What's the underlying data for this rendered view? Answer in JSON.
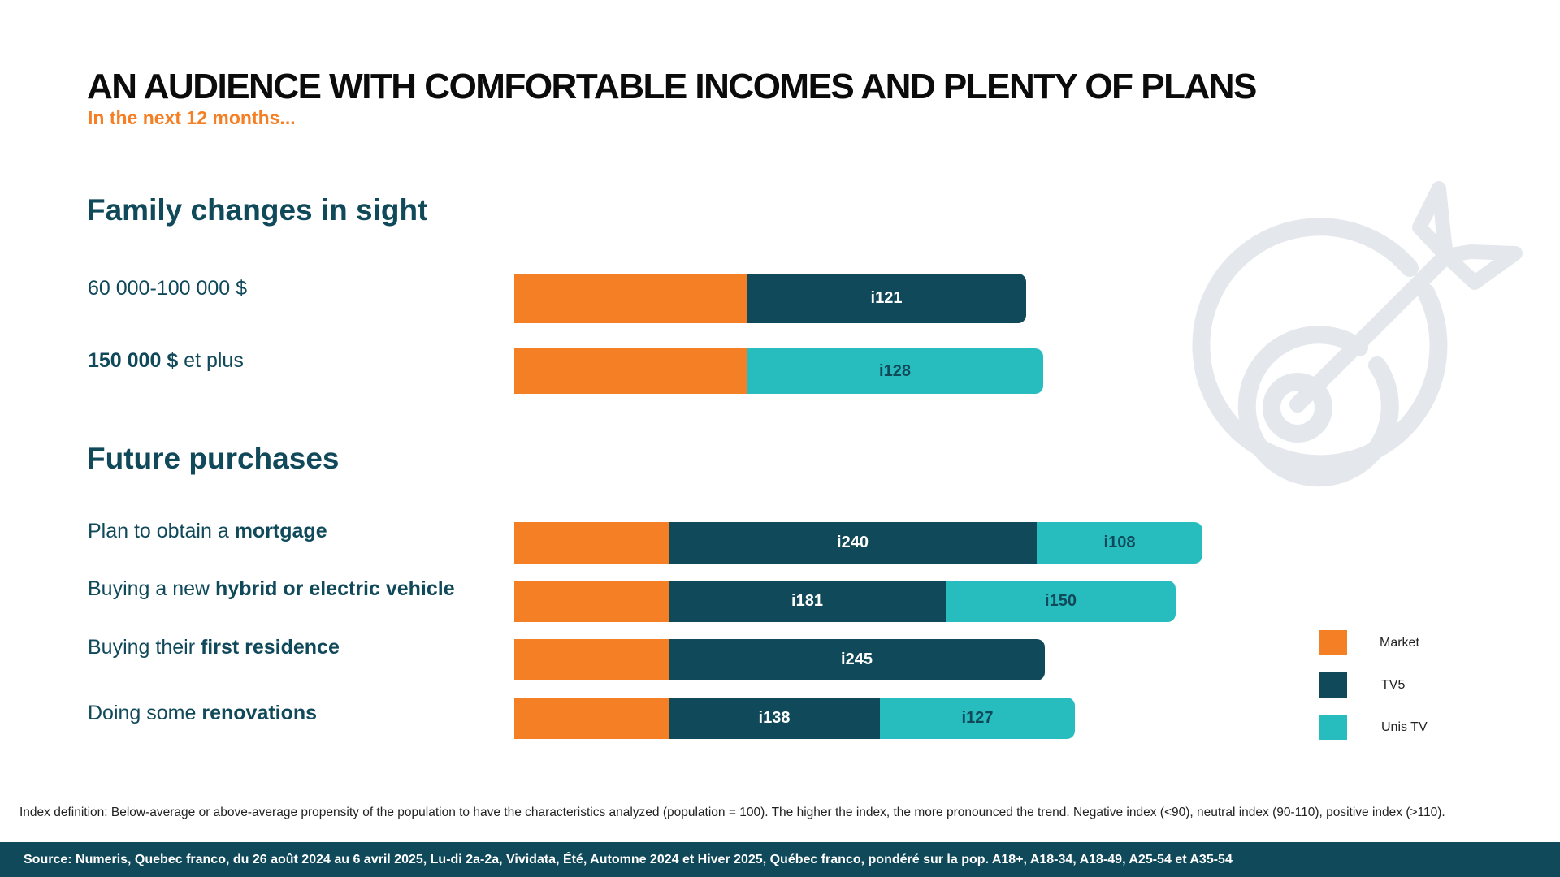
{
  "header": {
    "title": "AN AUDIENCE WITH COMFORTABLE INCOMES AND PLENTY OF PLANS",
    "subtitle": "In the next 12 months..."
  },
  "sections": {
    "family_title": "Family changes in sight",
    "purchases_title": "Future purchases"
  },
  "rows": {
    "income_60_100": {
      "label": "60 000-100 000 $"
    },
    "income_150": {
      "label_bold": "150 000 $",
      "label_rest": " et plus"
    },
    "mortgage": {
      "label_pre": "Plan to obtain a ",
      "label_bold": "mortgage"
    },
    "vehicle": {
      "label_pre": "Buying a new ",
      "label_bold": "hybrid or electric vehicle"
    },
    "residence": {
      "label_pre": "Buying their ",
      "label_bold": "first residence"
    },
    "renovations": {
      "label_pre": "Doing some ",
      "label_bold": "renovations"
    }
  },
  "legend": {
    "market": "Market",
    "tv5": "TV5",
    "unis": "Unis TV"
  },
  "colors": {
    "market": "#f57f25",
    "tv5": "#10495a",
    "unis": "#27bdbe",
    "text": "#10495a",
    "icon": "#e4e8ec"
  },
  "icons": {
    "target": "target-arrow-icon"
  },
  "chart_data": {
    "type": "bar",
    "orientation": "horizontal",
    "stacked": true,
    "categories": [
      "60 000-100 000 $",
      "150 000 $ et plus",
      "Plan to obtain a mortgage",
      "Buying a new hybrid or electric vehicle",
      "Buying their first residence",
      "Doing some renovations"
    ],
    "series": [
      {
        "name": "Market",
        "index_labels": [
          "",
          "",
          "",
          "",
          "",
          ""
        ]
      },
      {
        "name": "TV5",
        "values": [
          121,
          null,
          240,
          181,
          245,
          138
        ],
        "index_labels": [
          "i121",
          "",
          "i240",
          "i181",
          "i245",
          "i138"
        ]
      },
      {
        "name": "Unis TV",
        "values": [
          null,
          128,
          108,
          150,
          null,
          127
        ],
        "index_labels": [
          "",
          "i128",
          "i108",
          "i150",
          "",
          "i127"
        ]
      }
    ],
    "legend_position": "right",
    "grid": false
  },
  "footnote": "Index definition: Below-average or above-average propensity of the population to have the characteristics analyzed (population = 100). The higher the index, the more pronounced the trend. Negative index (<90), neutral index (90-110), positive index (>110).",
  "source": "Source: Numeris, Quebec franco, du 26 août 2024 au 6 avril 2025, Lu-di 2a-2a, Vividata, Été, Automne 2024 et Hiver 2025,  Québec franco, pondéré sur la pop. A18+, A18-34, A18-49, A25-54 et A35-54"
}
